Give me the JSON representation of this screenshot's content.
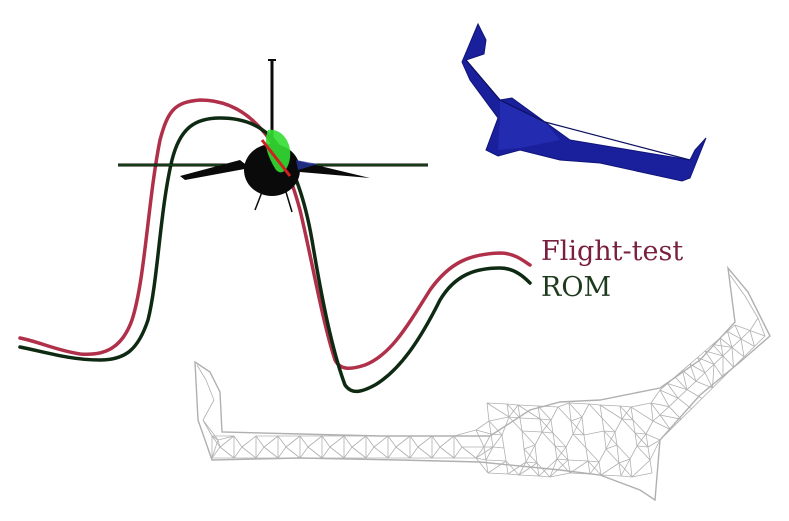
{
  "legend": {
    "flight_test": {
      "label": "Flight-test",
      "color": "#7a1f3d"
    },
    "rom": {
      "label": "ROM",
      "color": "#1e3a1e"
    }
  },
  "colors": {
    "flight_test_curve": "#b0304a",
    "rom_curve": "#0f2a12",
    "solid_wing": "#1a1f9c",
    "wireframe_mesh": "#b0b0b0",
    "aircraft_body": "#0a0a0a",
    "aircraft_highlight": "#33dd33"
  }
}
